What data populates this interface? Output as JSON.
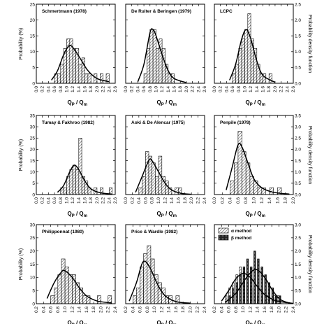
{
  "colors": {
    "ink": "#000000",
    "hatch": "#000000",
    "paper": "#ffffff"
  },
  "figure": {
    "left_axis_label": "Probability (%)",
    "right_axis_label": "Probability density function",
    "x_axis_label_main": "Q",
    "x_axis_label_sub1": "P",
    "x_axis_label_sep": " / Q",
    "x_axis_label_sub2": "m"
  },
  "chart_data": [
    {
      "type": "bar",
      "title": "Schmertmann (1978)",
      "xlim": [
        0.0,
        2.6
      ],
      "xticks": [
        "0.0",
        "0.2",
        "0.4",
        "0.6",
        "0.8",
        "1.0",
        "1.2",
        "1.4",
        "1.6",
        "1.8",
        "2.0",
        "2.2",
        "2.4",
        "2.6"
      ],
      "ylim": [
        0,
        25
      ],
      "yticks": [
        "0",
        "5",
        "10",
        "15",
        "20",
        "25"
      ],
      "pdf_lim": [
        0,
        2.5
      ],
      "pdf_ticks": [
        "0.0",
        "0.5",
        "1.0",
        "1.5",
        "2.0",
        "2.5"
      ],
      "show_left": true,
      "show_right": false,
      "bin_width": 0.1,
      "bars": [
        [
          0.6,
          3
        ],
        [
          0.7,
          3
        ],
        [
          0.8,
          6
        ],
        [
          0.9,
          11
        ],
        [
          1.0,
          14
        ],
        [
          1.1,
          14
        ],
        [
          1.2,
          11
        ],
        [
          1.3,
          11
        ],
        [
          1.4,
          6
        ],
        [
          1.5,
          8
        ],
        [
          1.6,
          3
        ],
        [
          1.7,
          3
        ],
        [
          1.9,
          3
        ],
        [
          2.1,
          3
        ],
        [
          2.3,
          3
        ]
      ],
      "pdf": [
        [
          0.5,
          0.1
        ],
        [
          0.7,
          0.4
        ],
        [
          0.9,
          0.9
        ],
        [
          1.1,
          1.2
        ],
        [
          1.3,
          1.0
        ],
        [
          1.5,
          0.7
        ],
        [
          1.7,
          0.4
        ],
        [
          2.0,
          0.15
        ],
        [
          2.4,
          0.05
        ]
      ]
    },
    {
      "type": "bar",
      "title": "De Ruiter & Beringen (1979)",
      "xlim": [
        0.0,
        2.6
      ],
      "xticks": [
        "0.0",
        "0.2",
        "0.4",
        "0.6",
        "0.8",
        "1.0",
        "1.2",
        "1.4",
        "1.6",
        "1.8",
        "2.0",
        "2.2",
        "2.4",
        "2.6"
      ],
      "ylim": [
        0,
        25
      ],
      "yticks": [
        "0",
        "5",
        "10",
        "15",
        "20",
        "25"
      ],
      "pdf_lim": [
        0,
        2.5
      ],
      "pdf_ticks": [
        "0.0",
        "0.5",
        "1.0",
        "1.5",
        "2.0",
        "2.5"
      ],
      "show_left": false,
      "show_right": false,
      "bin_width": 0.1,
      "bars": [
        [
          0.6,
          3
        ],
        [
          0.7,
          11
        ],
        [
          0.8,
          17
        ],
        [
          0.9,
          17
        ],
        [
          1.0,
          11
        ],
        [
          1.1,
          14
        ],
        [
          1.2,
          11
        ],
        [
          1.3,
          6
        ],
        [
          1.4,
          3
        ],
        [
          1.5,
          3
        ]
      ],
      "pdf": [
        [
          0.4,
          0.05
        ],
        [
          0.6,
          0.6
        ],
        [
          0.8,
          1.6
        ],
        [
          0.9,
          1.7
        ],
        [
          1.0,
          1.5
        ],
        [
          1.2,
          0.9
        ],
        [
          1.4,
          0.4
        ],
        [
          1.6,
          0.15
        ],
        [
          2.0,
          0.02
        ]
      ]
    },
    {
      "type": "bar",
      "title": "LCPC",
      "xlim": [
        0.0,
        2.6
      ],
      "xticks": [
        "0.0",
        "0.2",
        "0.4",
        "0.6",
        "0.8",
        "1.0",
        "1.2",
        "1.4",
        "1.6",
        "1.8",
        "2.0",
        "2.2",
        "2.4",
        "2.6"
      ],
      "ylim": [
        0,
        25
      ],
      "yticks": [
        "0",
        "5",
        "10",
        "15",
        "20",
        "25"
      ],
      "pdf_lim": [
        0,
        2.5
      ],
      "pdf_ticks": [
        "0.0",
        "0.5",
        "1.0",
        "1.5",
        "2.0",
        "2.5"
      ],
      "show_left": false,
      "show_right": true,
      "bin_width": 0.1,
      "bars": [
        [
          0.6,
          3
        ],
        [
          0.7,
          6
        ],
        [
          0.8,
          11
        ],
        [
          0.9,
          14
        ],
        [
          1.0,
          17
        ],
        [
          1.1,
          22
        ],
        [
          1.2,
          14
        ],
        [
          1.3,
          11
        ],
        [
          1.4,
          6
        ],
        [
          1.5,
          3
        ],
        [
          1.6,
          3
        ],
        [
          1.8,
          3
        ]
      ],
      "pdf": [
        [
          0.5,
          0.1
        ],
        [
          0.7,
          0.6
        ],
        [
          0.9,
          1.4
        ],
        [
          1.05,
          1.7
        ],
        [
          1.2,
          1.4
        ],
        [
          1.4,
          0.7
        ],
        [
          1.6,
          0.25
        ],
        [
          2.0,
          0.03
        ]
      ]
    },
    {
      "type": "bar",
      "title": "Tumay & Fakhroo (1982)",
      "xlim": [
        0.0,
        2.6
      ],
      "xticks": [
        "0.0",
        "0.2",
        "0.4",
        "0.6",
        "0.8",
        "1.0",
        "1.2",
        "1.4",
        "1.6",
        "1.8",
        "2.0",
        "2.2",
        "2.4",
        "2.6"
      ],
      "ylim": [
        0,
        35
      ],
      "yticks": [
        "0",
        "5",
        "10",
        "15",
        "20",
        "25",
        "30",
        "35"
      ],
      "pdf_lim": [
        0,
        3.5
      ],
      "pdf_ticks": [
        "0.0",
        "0.5",
        "1.0",
        "1.5",
        "2.0",
        "2.5",
        "3.0",
        "3.5"
      ],
      "show_left": true,
      "show_right": false,
      "bin_width": 0.1,
      "bars": [
        [
          0.8,
          3
        ],
        [
          0.9,
          3
        ],
        [
          1.0,
          8
        ],
        [
          1.1,
          11
        ],
        [
          1.2,
          13
        ],
        [
          1.3,
          11
        ],
        [
          1.4,
          25
        ],
        [
          1.5,
          8
        ],
        [
          1.6,
          6
        ],
        [
          1.7,
          3
        ],
        [
          1.9,
          3
        ],
        [
          2.1,
          3
        ],
        [
          2.4,
          3
        ]
      ],
      "pdf": [
        [
          0.7,
          0.1
        ],
        [
          0.9,
          0.4
        ],
        [
          1.1,
          1.0
        ],
        [
          1.25,
          1.3
        ],
        [
          1.4,
          1.1
        ],
        [
          1.6,
          0.6
        ],
        [
          1.8,
          0.25
        ],
        [
          2.1,
          0.08
        ],
        [
          2.5,
          0.02
        ]
      ]
    },
    {
      "type": "bar",
      "title": "Aoki & De Alencar (1975)",
      "xlim": [
        0.0,
        2.4
      ],
      "xticks": [
        "0.0",
        "0.2",
        "0.4",
        "0.6",
        "0.8",
        "1.0",
        "1.2",
        "1.4",
        "1.6",
        "1.8",
        "2.0",
        "2.2",
        "2.4"
      ],
      "ylim": [
        0,
        35
      ],
      "yticks": [
        "0",
        "5",
        "10",
        "15",
        "20",
        "25",
        "30",
        "35"
      ],
      "pdf_lim": [
        0,
        3.5
      ],
      "pdf_ticks": [
        "0.0",
        "0.5",
        "1.0",
        "1.5",
        "2.0",
        "2.5",
        "3.0",
        "3.5"
      ],
      "show_left": false,
      "show_right": false,
      "bin_width": 0.1,
      "bars": [
        [
          0.4,
          3
        ],
        [
          0.5,
          8
        ],
        [
          0.6,
          19
        ],
        [
          0.7,
          17
        ],
        [
          0.8,
          14
        ],
        [
          0.9,
          8
        ],
        [
          1.0,
          17
        ],
        [
          1.1,
          8
        ],
        [
          1.2,
          6
        ],
        [
          1.3,
          3
        ],
        [
          1.5,
          3
        ],
        [
          1.6,
          3
        ]
      ],
      "pdf": [
        [
          0.3,
          0.1
        ],
        [
          0.5,
          0.8
        ],
        [
          0.7,
          1.5
        ],
        [
          0.8,
          1.5
        ],
        [
          1.0,
          1.0
        ],
        [
          1.2,
          0.5
        ],
        [
          1.4,
          0.2
        ],
        [
          1.7,
          0.05
        ],
        [
          2.0,
          0.01
        ]
      ]
    },
    {
      "type": "bar",
      "title": "Penpile (1978)",
      "xlim": [
        0.0,
        2.0
      ],
      "xticks": [
        "0.0",
        "0.2",
        "0.4",
        "0.6",
        "0.8",
        "1.0",
        "1.2",
        "1.4",
        "1.6",
        "1.8",
        "2.0"
      ],
      "ylim": [
        0,
        35
      ],
      "yticks": [
        "0",
        "5",
        "10",
        "15",
        "20",
        "25",
        "30",
        "35"
      ],
      "pdf_lim": [
        0,
        3.5
      ],
      "pdf_ticks": [
        "0.0",
        "0.5",
        "1.0",
        "1.5",
        "2.0",
        "2.5",
        "3.0",
        "3.5"
      ],
      "show_left": false,
      "show_right": true,
      "bin_width": 0.1,
      "bars": [
        [
          0.4,
          6
        ],
        [
          0.5,
          14
        ],
        [
          0.6,
          28
        ],
        [
          0.7,
          19
        ],
        [
          0.8,
          14
        ],
        [
          0.9,
          8
        ],
        [
          1.0,
          6
        ],
        [
          1.1,
          3
        ],
        [
          1.2,
          3
        ],
        [
          1.4,
          3
        ],
        [
          1.6,
          3
        ]
      ],
      "pdf": [
        [
          0.3,
          0.2
        ],
        [
          0.45,
          1.2
        ],
        [
          0.6,
          2.2
        ],
        [
          0.7,
          2.1
        ],
        [
          0.85,
          1.4
        ],
        [
          1.0,
          0.7
        ],
        [
          1.2,
          0.3
        ],
        [
          1.5,
          0.1
        ],
        [
          1.9,
          0.02
        ]
      ]
    },
    {
      "type": "bar",
      "title": "Philipponnat (1980)",
      "xlim": [
        0.2,
        2.4
      ],
      "xticks": [
        "0.2",
        "0.4",
        "0.6",
        "0.8",
        "1.0",
        "1.2",
        "1.4",
        "1.6",
        "1.8",
        "2.0",
        "2.2",
        "2.4"
      ],
      "ylim": [
        0,
        30
      ],
      "yticks": [
        "0",
        "5",
        "10",
        "15",
        "20",
        "25",
        "30"
      ],
      "pdf_lim": [
        0,
        3.0
      ],
      "pdf_ticks": [
        "0.0",
        "0.5",
        "1.0",
        "1.5",
        "2.0",
        "2.5",
        "3.0"
      ],
      "show_left": true,
      "show_right": false,
      "bin_width": 0.1,
      "bars": [
        [
          0.6,
          3
        ],
        [
          0.7,
          6
        ],
        [
          0.8,
          11
        ],
        [
          0.9,
          17
        ],
        [
          1.0,
          14
        ],
        [
          1.1,
          11
        ],
        [
          1.2,
          11
        ],
        [
          1.3,
          8
        ],
        [
          1.4,
          6
        ],
        [
          1.5,
          3
        ],
        [
          1.6,
          3
        ],
        [
          1.9,
          3
        ],
        [
          2.2,
          3
        ]
      ],
      "pdf": [
        [
          0.5,
          0.2
        ],
        [
          0.7,
          0.8
        ],
        [
          0.9,
          1.2
        ],
        [
          1.0,
          1.25
        ],
        [
          1.2,
          1.0
        ],
        [
          1.4,
          0.6
        ],
        [
          1.6,
          0.3
        ],
        [
          1.9,
          0.1
        ],
        [
          2.3,
          0.03
        ]
      ]
    },
    {
      "type": "bar",
      "title": "Price & Wardle (1982)",
      "xlim": [
        0.2,
        2.4
      ],
      "xticks": [
        "0.2",
        "0.4",
        "0.6",
        "0.8",
        "1.0",
        "1.2",
        "1.4",
        "1.6",
        "1.8",
        "2.0",
        "2.2",
        "2.4"
      ],
      "ylim": [
        0,
        30
      ],
      "yticks": [
        "0",
        "5",
        "10",
        "15",
        "20",
        "25",
        "30"
      ],
      "pdf_lim": [
        0,
        3.0
      ],
      "pdf_ticks": [
        "0.0",
        "0.5",
        "1.0",
        "1.5",
        "2.0",
        "2.5",
        "3.0"
      ],
      "show_left": false,
      "show_right": false,
      "bin_width": 0.1,
      "bars": [
        [
          0.4,
          3
        ],
        [
          0.5,
          6
        ],
        [
          0.6,
          14
        ],
        [
          0.7,
          19
        ],
        [
          0.8,
          22
        ],
        [
          0.9,
          17
        ],
        [
          1.0,
          11
        ],
        [
          1.1,
          8
        ],
        [
          1.2,
          6
        ],
        [
          1.3,
          3
        ],
        [
          1.4,
          3
        ],
        [
          1.6,
          3
        ]
      ],
      "pdf": [
        [
          0.3,
          0.1
        ],
        [
          0.5,
          0.8
        ],
        [
          0.65,
          1.5
        ],
        [
          0.75,
          1.6
        ],
        [
          0.9,
          1.3
        ],
        [
          1.1,
          0.7
        ],
        [
          1.3,
          0.3
        ],
        [
          1.6,
          0.08
        ],
        [
          2.0,
          0.02
        ]
      ]
    },
    {
      "type": "bar",
      "title": "",
      "xlim": [
        0.2,
        2.4
      ],
      "xticks": [
        "0.2",
        "0.4",
        "0.6",
        "0.8",
        "1.0",
        "1.2",
        "1.4",
        "1.6",
        "1.8",
        "2.0",
        "2.2",
        "2.4"
      ],
      "ylim": [
        0,
        30
      ],
      "yticks": [
        "0",
        "5",
        "10",
        "15",
        "20",
        "25",
        "30"
      ],
      "pdf_lim": [
        0,
        3.0
      ],
      "pdf_ticks": [
        "0.0",
        "0.5",
        "1.0",
        "1.5",
        "2.0",
        "2.5",
        "3.0"
      ],
      "show_left": false,
      "show_right": true,
      "bin_width": 0.05,
      "legend": [
        "α method",
        "β method"
      ],
      "series": [
        {
          "name": "α method",
          "bars": [
            [
              0.55,
              3
            ],
            [
              0.65,
              6
            ],
            [
              0.75,
              8
            ],
            [
              0.85,
              11
            ],
            [
              0.95,
              14
            ],
            [
              1.05,
              11
            ],
            [
              1.15,
              8
            ],
            [
              1.25,
              6
            ],
            [
              1.35,
              6
            ],
            [
              1.45,
              3
            ],
            [
              1.55,
              3
            ],
            [
              1.7,
              3
            ],
            [
              1.9,
              3
            ],
            [
              2.0,
              3
            ]
          ],
          "pdf": [
            [
              0.4,
              0.1
            ],
            [
              0.6,
              0.5
            ],
            [
              0.8,
              0.95
            ],
            [
              1.0,
              1.15
            ],
            [
              1.2,
              1.0
            ],
            [
              1.4,
              0.65
            ],
            [
              1.6,
              0.35
            ],
            [
              1.9,
              0.12
            ],
            [
              2.3,
              0.03
            ]
          ]
        },
        {
          "name": "β method",
          "bars": [
            [
              0.6,
              3
            ],
            [
              0.7,
              6
            ],
            [
              0.8,
              8
            ],
            [
              0.9,
              11
            ],
            [
              1.0,
              14
            ],
            [
              1.1,
              17
            ],
            [
              1.2,
              14
            ],
            [
              1.3,
              20
            ],
            [
              1.4,
              17
            ],
            [
              1.5,
              14
            ],
            [
              1.6,
              11
            ],
            [
              1.7,
              8
            ],
            [
              1.8,
              6
            ],
            [
              1.9,
              3
            ],
            [
              2.0,
              3
            ]
          ],
          "pdf": [
            [
              0.5,
              0.05
            ],
            [
              0.8,
              0.4
            ],
            [
              1.1,
              1.0
            ],
            [
              1.35,
              1.3
            ],
            [
              1.6,
              1.0
            ],
            [
              1.8,
              0.55
            ],
            [
              2.0,
              0.2
            ],
            [
              2.2,
              0.06
            ],
            [
              2.4,
              0.01
            ]
          ]
        }
      ]
    }
  ]
}
